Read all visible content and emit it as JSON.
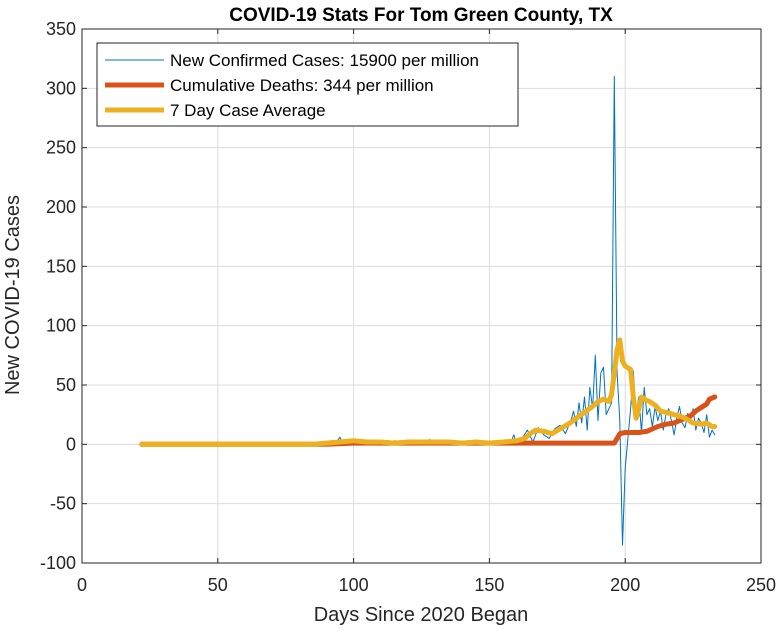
{
  "chart_data": {
    "type": "line",
    "title": "COVID-19 Stats For Tom Green County, TX",
    "xlabel": "Days Since 2020 Began",
    "ylabel": "New COVID-19 Cases",
    "xlim": [
      0,
      250
    ],
    "ylim": [
      -100,
      350
    ],
    "xticks": [
      0,
      50,
      100,
      150,
      200,
      250
    ],
    "yticks": [
      -100,
      -50,
      0,
      50,
      100,
      150,
      200,
      250,
      300,
      350
    ],
    "grid": true,
    "legend_position": "top-left",
    "series": [
      {
        "name": "New Confirmed Cases: 15900 per million",
        "color": "#0072BD",
        "width": "thin",
        "points": [
          [
            22,
            0
          ],
          [
            60,
            0
          ],
          [
            85,
            0
          ],
          [
            90,
            1
          ],
          [
            93,
            0
          ],
          [
            95,
            6
          ],
          [
            96,
            1
          ],
          [
            98,
            3
          ],
          [
            100,
            2
          ],
          [
            102,
            4
          ],
          [
            104,
            1
          ],
          [
            106,
            3
          ],
          [
            108,
            0
          ],
          [
            110,
            2
          ],
          [
            112,
            1
          ],
          [
            115,
            3
          ],
          [
            118,
            2
          ],
          [
            120,
            1
          ],
          [
            122,
            3
          ],
          [
            125,
            2
          ],
          [
            128,
            4
          ],
          [
            130,
            1
          ],
          [
            133,
            2
          ],
          [
            136,
            3
          ],
          [
            139,
            1
          ],
          [
            142,
            2
          ],
          [
            145,
            3
          ],
          [
            148,
            1
          ],
          [
            151,
            2
          ],
          [
            154,
            3
          ],
          [
            156,
            1
          ],
          [
            158,
            2
          ],
          [
            159,
            8
          ],
          [
            160,
            1
          ],
          [
            162,
            5
          ],
          [
            164,
            12
          ],
          [
            166,
            2
          ],
          [
            168,
            14
          ],
          [
            170,
            8
          ],
          [
            172,
            5
          ],
          [
            174,
            13
          ],
          [
            176,
            16
          ],
          [
            178,
            9
          ],
          [
            180,
            20
          ],
          [
            181,
            28
          ],
          [
            182,
            15
          ],
          [
            183,
            35
          ],
          [
            184,
            18
          ],
          [
            185,
            40
          ],
          [
            186,
            12
          ],
          [
            187,
            48
          ],
          [
            188,
            30
          ],
          [
            189,
            75
          ],
          [
            190,
            20
          ],
          [
            191,
            60
          ],
          [
            192,
            65
          ],
          [
            193,
            25
          ],
          [
            194,
            30
          ],
          [
            195,
            35
          ],
          [
            196,
            310
          ],
          [
            197,
            60
          ],
          [
            198,
            20
          ],
          [
            199,
            -85
          ],
          [
            200,
            -20
          ],
          [
            201,
            5
          ],
          [
            202,
            30
          ],
          [
            203,
            62
          ],
          [
            204,
            25
          ],
          [
            205,
            40
          ],
          [
            206,
            10
          ],
          [
            207,
            48
          ],
          [
            208,
            25
          ],
          [
            209,
            30
          ],
          [
            210,
            15
          ],
          [
            211,
            32
          ],
          [
            212,
            20
          ],
          [
            213,
            28
          ],
          [
            214,
            12
          ],
          [
            215,
            25
          ],
          [
            216,
            30
          ],
          [
            217,
            20
          ],
          [
            218,
            8
          ],
          [
            219,
            22
          ],
          [
            220,
            32
          ],
          [
            221,
            18
          ],
          [
            222,
            14
          ],
          [
            223,
            26
          ],
          [
            224,
            20
          ],
          [
            225,
            30
          ],
          [
            226,
            12
          ],
          [
            227,
            22
          ],
          [
            228,
            18
          ],
          [
            229,
            10
          ],
          [
            230,
            25
          ],
          [
            231,
            6
          ],
          [
            232,
            12
          ],
          [
            233,
            8
          ]
        ]
      },
      {
        "name": "Cumulative Deaths: 344 per million",
        "color": "#D95319",
        "width": "thick",
        "points": [
          [
            22,
            0
          ],
          [
            90,
            0
          ],
          [
            94,
            0.5
          ],
          [
            100,
            1
          ],
          [
            150,
            1
          ],
          [
            196,
            1
          ],
          [
            197,
            5
          ],
          [
            198,
            9
          ],
          [
            200,
            10
          ],
          [
            205,
            10
          ],
          [
            208,
            11
          ],
          [
            212,
            15
          ],
          [
            215,
            17
          ],
          [
            218,
            18
          ],
          [
            220,
            20
          ],
          [
            222,
            22
          ],
          [
            224,
            24
          ],
          [
            226,
            28
          ],
          [
            228,
            31
          ],
          [
            230,
            34
          ],
          [
            231,
            38
          ],
          [
            233,
            40
          ]
        ]
      },
      {
        "name": "7 Day Case Average",
        "color": "#EDB120",
        "width": "thick",
        "points": [
          [
            22,
            0
          ],
          [
            85,
            0
          ],
          [
            90,
            1
          ],
          [
            95,
            2
          ],
          [
            100,
            3
          ],
          [
            105,
            2
          ],
          [
            110,
            2
          ],
          [
            115,
            1
          ],
          [
            120,
            2
          ],
          [
            125,
            2
          ],
          [
            130,
            2
          ],
          [
            135,
            2
          ],
          [
            140,
            1
          ],
          [
            145,
            2
          ],
          [
            150,
            1
          ],
          [
            155,
            2
          ],
          [
            160,
            3
          ],
          [
            163,
            5
          ],
          [
            165,
            9
          ],
          [
            167,
            12
          ],
          [
            170,
            11
          ],
          [
            173,
            9
          ],
          [
            176,
            13
          ],
          [
            179,
            17
          ],
          [
            182,
            22
          ],
          [
            185,
            27
          ],
          [
            188,
            32
          ],
          [
            190,
            36
          ],
          [
            192,
            38
          ],
          [
            194,
            36
          ],
          [
            195,
            42
          ],
          [
            196,
            60
          ],
          [
            197,
            80
          ],
          [
            198,
            88
          ],
          [
            199,
            70
          ],
          [
            200,
            66
          ],
          [
            202,
            63
          ],
          [
            203,
            40
          ],
          [
            204,
            22
          ],
          [
            205,
            30
          ],
          [
            206,
            40
          ],
          [
            207,
            38
          ],
          [
            209,
            36
          ],
          [
            211,
            33
          ],
          [
            213,
            28
          ],
          [
            215,
            27
          ],
          [
            218,
            25
          ],
          [
            220,
            24
          ],
          [
            222,
            22
          ],
          [
            225,
            18
          ],
          [
            228,
            17
          ],
          [
            230,
            18
          ],
          [
            232,
            15
          ],
          [
            233,
            15
          ]
        ]
      }
    ]
  }
}
